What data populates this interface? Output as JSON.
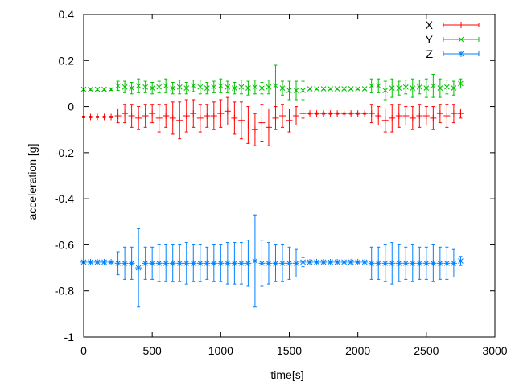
{
  "chart_data": {
    "type": "line",
    "title": "",
    "xlabel": "time[s]",
    "ylabel": "acceleration [g]",
    "xlim": [
      0,
      3000
    ],
    "ylim": [
      -1,
      0.4
    ],
    "xticks": [
      "0",
      "500",
      "1000",
      "1500",
      "2000",
      "2500",
      "3000"
    ],
    "yticks": [
      "0.4",
      "0.2",
      "0",
      "-0.2",
      "-0.4",
      "-0.6",
      "-0.8",
      "-1"
    ],
    "grid": false,
    "legend_position": "top-right",
    "style": "errorbars with points",
    "x": [
      0,
      50,
      100,
      150,
      200,
      250,
      300,
      350,
      400,
      450,
      500,
      550,
      600,
      650,
      700,
      750,
      800,
      850,
      900,
      950,
      1000,
      1050,
      1100,
      1150,
      1200,
      1250,
      1300,
      1350,
      1400,
      1450,
      1500,
      1550,
      1600,
      1650,
      1700,
      1750,
      1800,
      1850,
      1900,
      1950,
      2000,
      2050,
      2100,
      2150,
      2200,
      2250,
      2300,
      2350,
      2400,
      2450,
      2500,
      2550,
      2600,
      2650,
      2700,
      2750
    ],
    "series": [
      {
        "name": "X",
        "color": "#ff0000",
        "marker": "plus",
        "values": [
          -0.045,
          -0.045,
          -0.045,
          -0.045,
          -0.045,
          -0.04,
          -0.03,
          -0.04,
          -0.05,
          -0.04,
          -0.03,
          -0.05,
          -0.04,
          -0.05,
          -0.06,
          -0.04,
          -0.03,
          -0.05,
          -0.04,
          -0.04,
          -0.03,
          -0.02,
          -0.05,
          -0.06,
          -0.08,
          -0.1,
          -0.07,
          -0.09,
          -0.05,
          -0.04,
          -0.06,
          -0.04,
          -0.03,
          -0.03,
          -0.03,
          -0.03,
          -0.03,
          -0.03,
          -0.03,
          -0.03,
          -0.03,
          -0.03,
          -0.03,
          -0.04,
          -0.06,
          -0.05,
          -0.04,
          -0.04,
          -0.05,
          -0.04,
          -0.04,
          -0.05,
          -0.03,
          -0.04,
          -0.03,
          -0.03
        ],
        "errors": [
          0.003,
          0.003,
          0.003,
          0.003,
          0.003,
          0.03,
          0.04,
          0.05,
          0.05,
          0.05,
          0.04,
          0.06,
          0.05,
          0.07,
          0.08,
          0.07,
          0.06,
          0.06,
          0.05,
          0.06,
          0.06,
          0.06,
          0.07,
          0.08,
          0.08,
          0.07,
          0.08,
          0.08,
          0.05,
          0.05,
          0.05,
          0.04,
          0.02,
          0.003,
          0.003,
          0.003,
          0.003,
          0.003,
          0.003,
          0.003,
          0.003,
          0.003,
          0.04,
          0.04,
          0.05,
          0.06,
          0.05,
          0.04,
          0.05,
          0.05,
          0.04,
          0.05,
          0.04,
          0.05,
          0.04,
          0.02
        ]
      },
      {
        "name": "Y",
        "color": "#00c000",
        "marker": "cross",
        "values": [
          0.075,
          0.075,
          0.075,
          0.075,
          0.075,
          0.09,
          0.085,
          0.08,
          0.09,
          0.085,
          0.08,
          0.085,
          0.09,
          0.08,
          0.085,
          0.08,
          0.09,
          0.085,
          0.08,
          0.085,
          0.09,
          0.085,
          0.08,
          0.085,
          0.08,
          0.085,
          0.08,
          0.085,
          0.09,
          0.08,
          0.07,
          0.07,
          0.07,
          0.077,
          0.077,
          0.077,
          0.077,
          0.077,
          0.077,
          0.077,
          0.077,
          0.077,
          0.09,
          0.09,
          0.07,
          0.08,
          0.08,
          0.085,
          0.08,
          0.085,
          0.08,
          0.09,
          0.08,
          0.085,
          0.08,
          0.1
        ],
        "errors": [
          0.005,
          0.005,
          0.005,
          0.005,
          0.005,
          0.02,
          0.025,
          0.025,
          0.03,
          0.025,
          0.025,
          0.025,
          0.03,
          0.025,
          0.03,
          0.025,
          0.025,
          0.03,
          0.025,
          0.025,
          0.03,
          0.025,
          0.025,
          0.03,
          0.03,
          0.03,
          0.025,
          0.03,
          0.09,
          0.03,
          0.04,
          0.04,
          0.04,
          0.004,
          0.004,
          0.004,
          0.004,
          0.004,
          0.004,
          0.004,
          0.004,
          0.004,
          0.03,
          0.03,
          0.04,
          0.04,
          0.03,
          0.03,
          0.04,
          0.03,
          0.04,
          0.05,
          0.04,
          0.03,
          0.03,
          0.02
        ]
      },
      {
        "name": "Z",
        "color": "#0080ff",
        "marker": "star",
        "values": [
          -0.675,
          -0.675,
          -0.675,
          -0.675,
          -0.675,
          -0.68,
          -0.68,
          -0.68,
          -0.7,
          -0.68,
          -0.68,
          -0.68,
          -0.68,
          -0.68,
          -0.68,
          -0.68,
          -0.68,
          -0.68,
          -0.68,
          -0.68,
          -0.68,
          -0.68,
          -0.68,
          -0.68,
          -0.68,
          -0.67,
          -0.68,
          -0.68,
          -0.68,
          -0.68,
          -0.68,
          -0.68,
          -0.675,
          -0.675,
          -0.675,
          -0.675,
          -0.675,
          -0.675,
          -0.675,
          -0.675,
          -0.675,
          -0.675,
          -0.68,
          -0.68,
          -0.68,
          -0.68,
          -0.68,
          -0.68,
          -0.68,
          -0.68,
          -0.68,
          -0.68,
          -0.68,
          -0.68,
          -0.68,
          -0.67
        ],
        "errors": [
          0.004,
          0.004,
          0.004,
          0.004,
          0.004,
          0.05,
          0.07,
          0.07,
          0.17,
          0.07,
          0.07,
          0.08,
          0.08,
          0.08,
          0.08,
          0.09,
          0.08,
          0.08,
          0.07,
          0.08,
          0.08,
          0.09,
          0.09,
          0.09,
          0.1,
          0.2,
          0.1,
          0.09,
          0.08,
          0.08,
          0.07,
          0.06,
          0.02,
          0.004,
          0.004,
          0.004,
          0.004,
          0.004,
          0.004,
          0.004,
          0.004,
          0.004,
          0.07,
          0.07,
          0.08,
          0.09,
          0.08,
          0.07,
          0.08,
          0.07,
          0.07,
          0.08,
          0.07,
          0.07,
          0.06,
          0.02
        ]
      }
    ]
  }
}
